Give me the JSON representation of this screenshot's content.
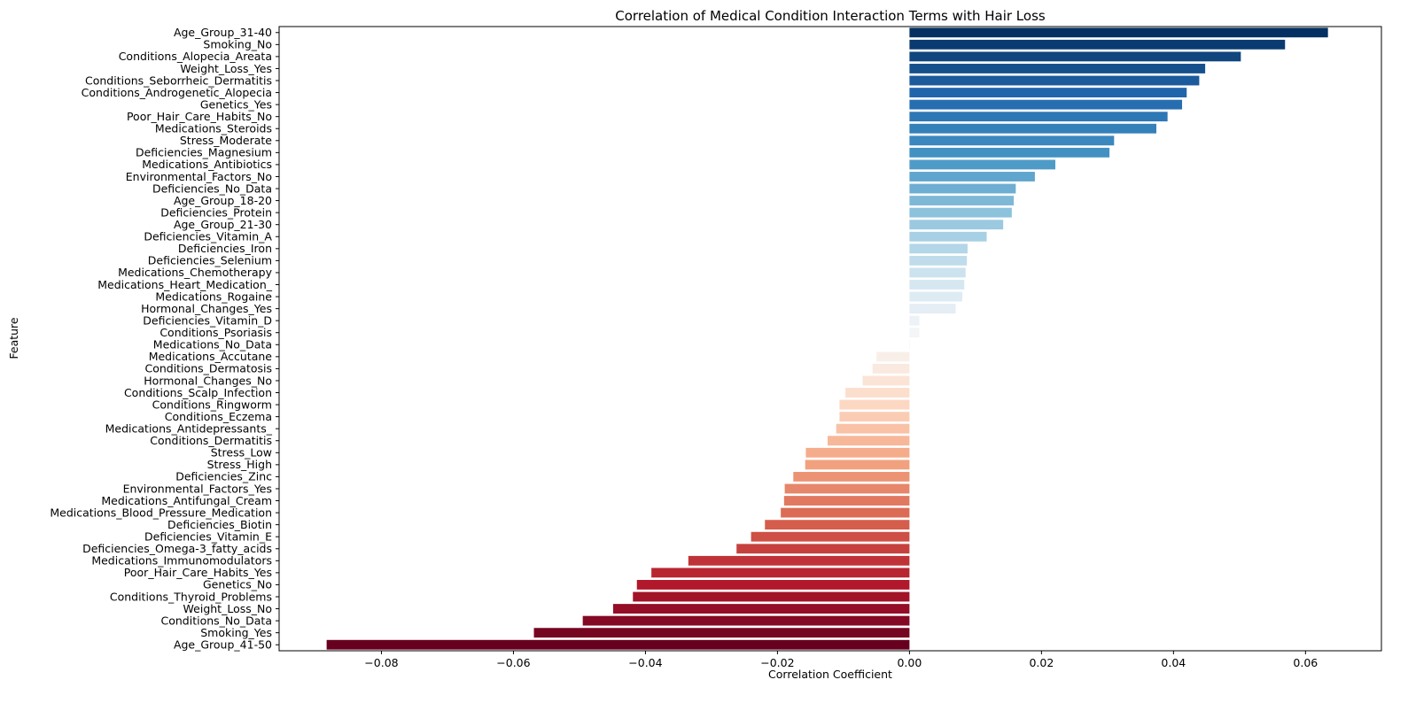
{
  "chart_data": {
    "type": "bar",
    "orientation": "horizontal",
    "title": "Correlation of Medical Condition Interaction Terms with Hair Loss",
    "xlabel": "Correlation Coefficient",
    "ylabel": "Feature",
    "xlim": [
      -0.0955,
      0.0715
    ],
    "xticks": [
      -0.08,
      -0.06,
      -0.04,
      -0.02,
      0.0,
      0.02,
      0.04,
      0.06
    ],
    "xtick_labels": [
      "−0.08",
      "−0.06",
      "−0.04",
      "−0.02",
      "0.00",
      "0.02",
      "0.04",
      "0.06"
    ],
    "grid": false,
    "legend": "none",
    "colormap": "RdBu diverging (dark blue for strongest positive → white near zero → dark red for strongest negative)",
    "categories": [
      "Age_Group_31-40",
      "Smoking_No",
      "Conditions_Alopecia_Areata",
      "Weight_Loss_Yes",
      "Conditions_Seborrheic_Dermatitis",
      "Conditions_Androgenetic_Alopecia",
      "Genetics_Yes",
      "Poor_Hair_Care_Habits_No",
      "Medications_Steroids",
      "Stress_Moderate",
      "Deficiencies_Magnesium",
      "Medications_Antibiotics",
      "Environmental_Factors_No",
      "Deficiencies_No_Data",
      "Age_Group_18-20",
      "Deficiencies_Protein",
      "Age_Group_21-30",
      "Deficiencies_Vitamin_A",
      "Deficiencies_Iron",
      "Deficiencies_Selenium",
      "Medications_Chemotherapy",
      "Medications_Heart_Medication_",
      "Medications_Rogaine",
      "Hormonal_Changes_Yes",
      "Deficiencies_Vitamin_D",
      "Conditions_Psoriasis",
      "Medications_No_Data",
      "Medications_Accutane",
      "Conditions_Dermatosis",
      "Hormonal_Changes_No",
      "Conditions_Scalp_Infection",
      "Conditions_Ringworm",
      "Conditions_Eczema",
      "Medications_Antidepressants_",
      "Conditions_Dermatitis",
      "Stress_Low",
      "Stress_High",
      "Deficiencies_Zinc",
      "Environmental_Factors_Yes",
      "Medications_Antifungal_Cream",
      "Medications_Blood_Pressure_Medication",
      "Deficiencies_Biotin",
      "Deficiencies_Vitamin_E",
      "Deficiencies_Omega-3_fatty_acids",
      "Medications_Immunomodulators",
      "Poor_Hair_Care_Habits_Yes",
      "Genetics_No",
      "Conditions_Thyroid_Problems",
      "Weight_Loss_No",
      "Conditions_No_Data",
      "Smoking_Yes",
      "Age_Group_41-50"
    ],
    "values": [
      0.0634,
      0.0569,
      0.0502,
      0.0448,
      0.0439,
      0.042,
      0.0413,
      0.0391,
      0.0374,
      0.031,
      0.0303,
      0.0221,
      0.019,
      0.0161,
      0.0158,
      0.0155,
      0.0142,
      0.0117,
      0.0088,
      0.0087,
      0.0085,
      0.0083,
      0.008,
      0.007,
      0.0015,
      0.0015,
      0.0,
      -0.005,
      -0.0056,
      -0.0071,
      -0.0097,
      -0.0106,
      -0.0106,
      -0.0111,
      -0.0124,
      -0.0157,
      -0.0158,
      -0.0176,
      -0.0189,
      -0.019,
      -0.0195,
      -0.0219,
      -0.024,
      -0.0262,
      -0.0335,
      -0.0391,
      -0.0413,
      -0.0419,
      -0.0449,
      -0.0495,
      -0.0569,
      -0.0883
    ]
  }
}
